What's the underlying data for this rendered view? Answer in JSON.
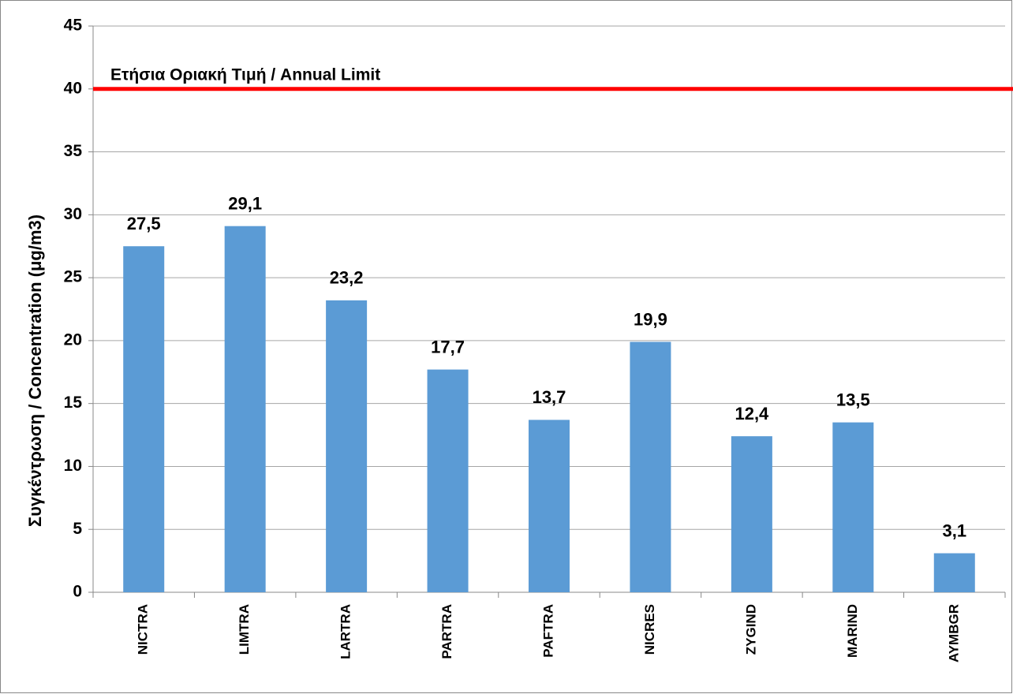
{
  "chart_data": {
    "type": "bar",
    "y_axis_label": "Συγκέντρωση / Concentration (μg/m3)",
    "categories": [
      "NICTRA",
      "LIMTRA",
      "LARTRA",
      "PARTRA",
      "PAFTRA",
      "NICRES",
      "ZYGIND",
      "MARIND",
      "AYMBGR"
    ],
    "values": [
      27.5,
      29.1,
      23.2,
      17.7,
      13.7,
      19.9,
      12.4,
      13.5,
      3.1
    ],
    "value_labels": [
      "27,5",
      "29,1",
      "23,2",
      "17,7",
      "13,7",
      "19,9",
      "12,4",
      "13,5",
      "3,1"
    ],
    "color": "#5b9bd5",
    "ylim": [
      0,
      45
    ],
    "yticks": [
      0,
      5,
      10,
      15,
      20,
      25,
      30,
      35,
      40,
      45
    ],
    "grid": true,
    "limit_line": {
      "value": 40,
      "label": "Ετήσια Οριακή Τιμή / Annual Limit",
      "color": "#ff0000"
    }
  }
}
